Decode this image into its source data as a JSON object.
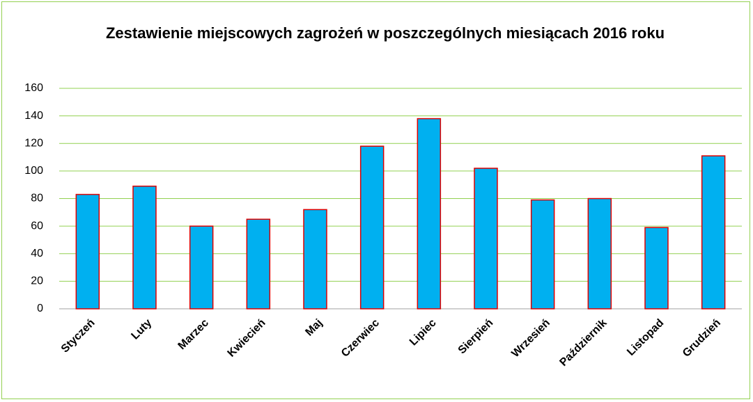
{
  "chart_data": {
    "type": "bar",
    "title": "Zestawienie miejscowych zagrożeń w poszczególnych miesiącach 2016 roku",
    "categories": [
      "Styczeń",
      "Luty",
      "Marzec",
      "Kwiecień",
      "Maj",
      "Czerwiec",
      "Lipiec",
      "Sierpień",
      "Wrzesień",
      "Październik",
      "Listopad",
      "Grudzień"
    ],
    "values": [
      83,
      89,
      60,
      65,
      72,
      118,
      138,
      102,
      79,
      80,
      59,
      111
    ],
    "color": "#00b0f0",
    "edge_color": "#e00000",
    "ylim": [
      0,
      160
    ],
    "yticks": [
      0,
      20,
      40,
      60,
      80,
      100,
      120,
      140,
      160
    ],
    "grid": true,
    "grid_color": "#92d050"
  }
}
